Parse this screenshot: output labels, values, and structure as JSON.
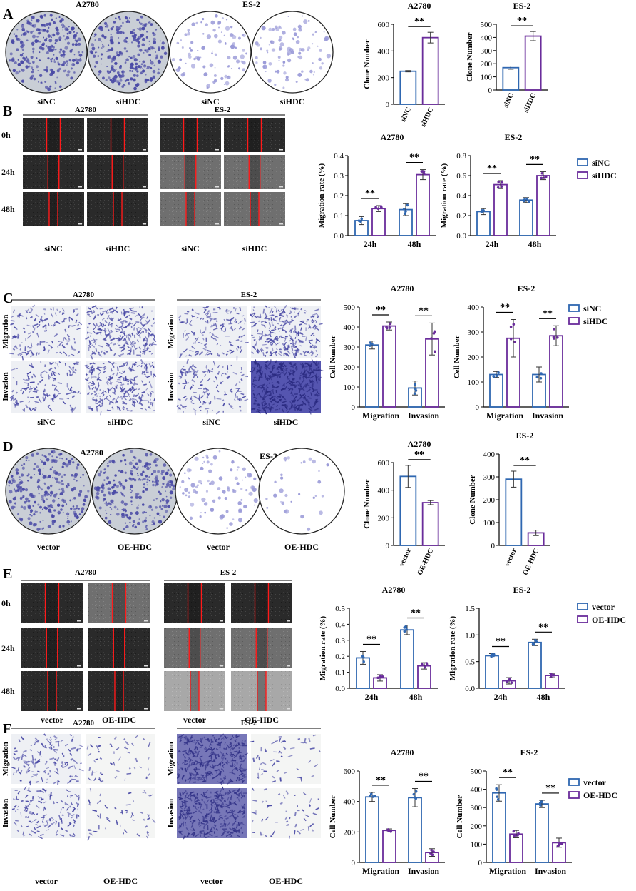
{
  "colors": {
    "blue": "#2f67b1",
    "purple": "#6a2c9b",
    "red": "#ff1a1a",
    "stain": "#4a4aa6",
    "stain_light": "#9a9ad8"
  },
  "panels": [
    {
      "letter": "A",
      "kind": "dish",
      "groups": [
        {
          "title": "A2780",
          "labels": [
            "siNC",
            "siHDC"
          ],
          "density": [
            "heavy",
            "heavy"
          ]
        },
        {
          "title": "ES-2",
          "labels": [
            "siNC",
            "siHDC"
          ],
          "density": [
            "light",
            "light"
          ]
        }
      ]
    },
    {
      "letter": "B",
      "kind": "wound",
      "rows": [
        "0h",
        "24h",
        "48h"
      ],
      "groups": [
        {
          "title": "A2780",
          "labels": [
            "siNC",
            "siHDC"
          ]
        },
        {
          "title": "ES-2",
          "labels": [
            "siNC",
            "siHDC"
          ]
        }
      ]
    },
    {
      "letter": "C",
      "kind": "transwell",
      "rows": [
        "Migration",
        "Invasion"
      ],
      "groups": [
        {
          "title": "A2780",
          "labels": [
            "siNC",
            "siHDC"
          ]
        },
        {
          "title": "ES-2",
          "labels": [
            "siNC",
            "siHDC"
          ]
        }
      ]
    },
    {
      "letter": "D",
      "kind": "dish",
      "groups": [
        {
          "title": "A2780",
          "labels": [
            "vector",
            "OE-HDC"
          ],
          "density": [
            "heavy",
            "heavy"
          ]
        },
        {
          "title": "ES-2",
          "labels": [
            "vector",
            "OE-HDC"
          ],
          "density": [
            "light",
            "sparse"
          ]
        }
      ]
    },
    {
      "letter": "E",
      "kind": "wound",
      "rows": [
        "0h",
        "24h",
        "48h"
      ],
      "groups": [
        {
          "title": "A2780",
          "labels": [
            "vector",
            "OE-HDC"
          ]
        },
        {
          "title": "ES-2",
          "labels": [
            "vector",
            "OE-HDC"
          ]
        }
      ]
    },
    {
      "letter": "F",
      "kind": "transwell",
      "rows": [
        "Migration",
        "Invasion"
      ],
      "groups": [
        {
          "title": "A2780",
          "labels": [
            "vector",
            "OE-HDC"
          ]
        },
        {
          "title": "ES-2",
          "labels": [
            "vector",
            "OE-HDC"
          ]
        }
      ]
    }
  ],
  "legends": [
    {
      "panel": "B",
      "entries": [
        "siNC",
        "siHDC"
      ]
    },
    {
      "panel": "C",
      "entries": [
        "siNC",
        "siHDC"
      ]
    },
    {
      "panel": "E",
      "entries": [
        "vector",
        "OE-HDC"
      ]
    },
    {
      "panel": "F",
      "entries": [
        "vector",
        "OE-HDC"
      ]
    }
  ],
  "chart_data": [
    {
      "panel": "A",
      "type": "bar",
      "title": "A2780",
      "ylabel": "Clone Number",
      "ylim": [
        0,
        600
      ],
      "yticks": [
        0,
        200,
        400,
        600
      ],
      "categories": [
        "siNC",
        "siHDC"
      ],
      "values": [
        248,
        500
      ],
      "errors": [
        5,
        40
      ],
      "significance": "**"
    },
    {
      "panel": "A",
      "type": "bar",
      "title": "ES-2",
      "ylabel": "Clone Number",
      "ylim": [
        0,
        500
      ],
      "yticks": [
        0,
        100,
        200,
        300,
        400,
        500
      ],
      "categories": [
        "siNC",
        "siHDC"
      ],
      "values": [
        170,
        410
      ],
      "errors": [
        12,
        35
      ],
      "significance": "**"
    },
    {
      "panel": "B",
      "type": "bar",
      "title": "A2780",
      "ylabel": "Migration rate (%)",
      "ylim": [
        0,
        0.4
      ],
      "yticks": [
        "0.0",
        "0.1",
        "0.2",
        "0.3",
        "0.4"
      ],
      "categories": [
        "24h",
        "48h"
      ],
      "series": [
        {
          "name": "siNC",
          "values": [
            0.075,
            0.13
          ],
          "errors": [
            0.02,
            0.03
          ]
        },
        {
          "name": "siHDC",
          "values": [
            0.135,
            0.305
          ],
          "errors": [
            0.015,
            0.025
          ]
        }
      ],
      "significance": [
        "**",
        "**"
      ]
    },
    {
      "panel": "B",
      "type": "bar",
      "title": "ES-2",
      "ylabel": "Migration rate (%)",
      "ylim": [
        0,
        0.8
      ],
      "yticks": [
        "0.0",
        "0.2",
        "0.4",
        "0.6",
        "0.8"
      ],
      "categories": [
        "24h",
        "48h"
      ],
      "series": [
        {
          "name": "siNC",
          "values": [
            0.24,
            0.355
          ],
          "errors": [
            0.03,
            0.025
          ]
        },
        {
          "name": "siHDC",
          "values": [
            0.51,
            0.6
          ],
          "errors": [
            0.04,
            0.04
          ]
        }
      ],
      "significance": [
        "**",
        "**"
      ]
    },
    {
      "panel": "C",
      "type": "bar",
      "title": "A2780",
      "ylabel": "Cell Number",
      "ylim": [
        0,
        500
      ],
      "yticks": [
        0,
        100,
        200,
        300,
        400,
        500
      ],
      "categories": [
        "Migration",
        "Invasion"
      ],
      "series": [
        {
          "name": "siNC",
          "values": [
            310,
            95
          ],
          "errors": [
            20,
            35
          ]
        },
        {
          "name": "siHDC",
          "values": [
            405,
            340
          ],
          "errors": [
            20,
            80
          ]
        }
      ],
      "significance": [
        "**",
        "**"
      ]
    },
    {
      "panel": "C",
      "type": "bar",
      "title": "ES-2",
      "ylabel": "Cell Number",
      "ylim": [
        0,
        400
      ],
      "yticks": [
        0,
        100,
        200,
        300,
        400
      ],
      "categories": [
        "Migration",
        "Invasion"
      ],
      "series": [
        {
          "name": "siNC",
          "values": [
            130,
            130
          ],
          "errors": [
            12,
            30
          ]
        },
        {
          "name": "siHDC",
          "values": [
            275,
            285
          ],
          "errors": [
            75,
            40
          ]
        }
      ],
      "significance": [
        "**",
        "**"
      ]
    },
    {
      "panel": "D",
      "type": "bar",
      "title": "A2780",
      "ylabel": "Clone Number",
      "ylim": [
        0,
        600
      ],
      "yticks": [
        0,
        200,
        400,
        600
      ],
      "categories": [
        "vector",
        "OE-HDC"
      ],
      "values": [
        500,
        310
      ],
      "errors": [
        80,
        15
      ],
      "significance": "**"
    },
    {
      "panel": "D",
      "type": "bar",
      "title": "ES-2",
      "ylabel": "Clone Number",
      "ylim": [
        0,
        400
      ],
      "yticks": [
        0,
        100,
        200,
        300,
        400
      ],
      "categories": [
        "vector",
        "OE-HDC"
      ],
      "values": [
        290,
        55
      ],
      "errors": [
        35,
        12
      ],
      "significance": "**"
    },
    {
      "panel": "E",
      "type": "bar",
      "title": "A2780",
      "ylabel": "Migration rate (%)",
      "ylim": [
        0,
        0.5
      ],
      "yticks": [
        "0.0",
        "0.1",
        "0.2",
        "0.3",
        "0.4",
        "0.5"
      ],
      "categories": [
        "24h",
        "48h"
      ],
      "series": [
        {
          "name": "vector",
          "values": [
            0.19,
            0.365
          ],
          "errors": [
            0.04,
            0.03
          ]
        },
        {
          "name": "OE-HDC",
          "values": [
            0.065,
            0.14
          ],
          "errors": [
            0.02,
            0.02
          ]
        }
      ],
      "significance": [
        "**",
        "**"
      ]
    },
    {
      "panel": "E",
      "type": "bar",
      "title": "ES-2",
      "ylabel": "Migration rate (%)",
      "ylim": [
        0,
        1.5
      ],
      "yticks": [
        "0.0",
        "0.5",
        "1.0",
        "1.5"
      ],
      "categories": [
        "24h",
        "48h"
      ],
      "series": [
        {
          "name": "vector",
          "values": [
            0.61,
            0.86
          ],
          "errors": [
            0.04,
            0.06
          ]
        },
        {
          "name": "OE-HDC",
          "values": [
            0.14,
            0.24
          ],
          "errors": [
            0.06,
            0.04
          ]
        }
      ],
      "significance": [
        "**",
        "**"
      ]
    },
    {
      "panel": "F",
      "type": "bar",
      "title": "A2780",
      "ylabel": "Cell Number",
      "ylim": [
        0,
        600
      ],
      "yticks": [
        0,
        200,
        400,
        600
      ],
      "categories": [
        "Migration",
        "Invasion"
      ],
      "series": [
        {
          "name": "vector",
          "values": [
            430,
            425
          ],
          "errors": [
            30,
            60
          ]
        },
        {
          "name": "OE-HDC",
          "values": [
            210,
            65
          ],
          "errors": [
            10,
            25
          ]
        }
      ],
      "significance": [
        "**",
        "**"
      ]
    },
    {
      "panel": "F",
      "type": "bar",
      "title": "ES-2",
      "ylabel": "Cell Number",
      "ylim": [
        0,
        500
      ],
      "yticks": [
        0,
        100,
        200,
        300,
        400,
        500
      ],
      "categories": [
        "Migration",
        "Invasion"
      ],
      "series": [
        {
          "name": "vector",
          "values": [
            380,
            320
          ],
          "errors": [
            45,
            20
          ]
        },
        {
          "name": "OE-HDC",
          "values": [
            155,
            108
          ],
          "errors": [
            20,
            25
          ]
        }
      ],
      "significance": [
        "**",
        "**"
      ]
    }
  ]
}
